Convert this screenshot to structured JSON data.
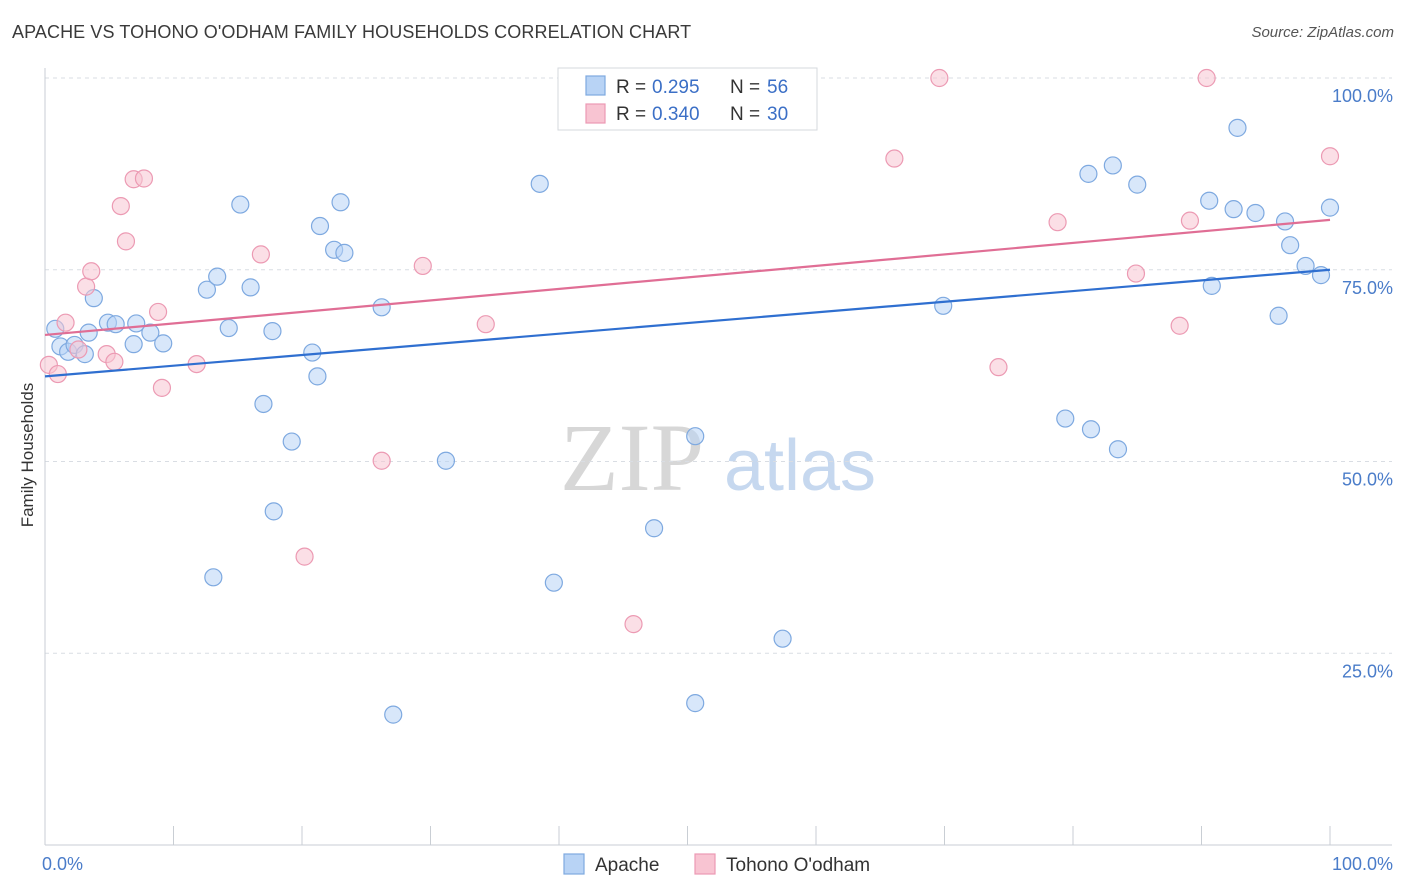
{
  "title": "APACHE VS TOHONO O'ODHAM FAMILY HOUSEHOLDS CORRELATION CHART",
  "source": "Source: ZipAtlas.com",
  "watermark": {
    "zip": "ZIP",
    "atlas": "atlas"
  },
  "colors": {
    "apache_fill": "#b8d3f5",
    "apache_stroke": "#7ea9e0",
    "apache_line": "#2f6fd0",
    "tohono_fill": "#f8c4d2",
    "tohono_stroke": "#ec9ab3",
    "tohono_line": "#e06e95",
    "grid": "#d9dde3",
    "tick": "#4a7cc9"
  },
  "legend": {
    "rows": [
      {
        "series": "apache",
        "r_label": "R = ",
        "r_value": "0.295",
        "n_label": "N = ",
        "n_value": "56"
      },
      {
        "series": "tohono",
        "r_label": "R = ",
        "r_value": "0.340",
        "n_label": "N = ",
        "n_value": "30"
      }
    ]
  },
  "chart_data": {
    "type": "scatter",
    "title": "APACHE VS TOHONO O'ODHAM FAMILY HOUSEHOLDS CORRELATION CHART",
    "xlabel": "",
    "ylabel": "Family Households",
    "xlim": [
      0,
      100
    ],
    "ylim": [
      0,
      104
    ],
    "x_tick_labels": [
      {
        "value": 0,
        "label": "0.0%"
      },
      {
        "value": 100,
        "label": "100.0%"
      }
    ],
    "y_tick_labels": [
      {
        "value": 25,
        "label": "25.0%"
      },
      {
        "value": 50,
        "label": "50.0%"
      },
      {
        "value": 75,
        "label": "75.0%"
      },
      {
        "value": 100,
        "label": "100.0%"
      }
    ],
    "grid": true,
    "legend_position": "bottom-center",
    "series": [
      {
        "name": "Apache",
        "key": "apache",
        "trend": {
          "x": [
            0,
            100
          ],
          "y": [
            61.1,
            75.0
          ]
        },
        "points": [
          {
            "x": 0.8,
            "y": 67.3
          },
          {
            "x": 1.2,
            "y": 65.0
          },
          {
            "x": 1.8,
            "y": 64.3
          },
          {
            "x": 2.3,
            "y": 65.2
          },
          {
            "x": 3.4,
            "y": 66.8
          },
          {
            "x": 3.8,
            "y": 71.3
          },
          {
            "x": 4.9,
            "y": 68.1
          },
          {
            "x": 5.5,
            "y": 67.9
          },
          {
            "x": 7.1,
            "y": 68.0
          },
          {
            "x": 8.2,
            "y": 66.8
          },
          {
            "x": 9.2,
            "y": 65.4
          },
          {
            "x": 12.6,
            "y": 72.4
          },
          {
            "x": 14.3,
            "y": 67.4
          },
          {
            "x": 13.4,
            "y": 74.1
          },
          {
            "x": 16.0,
            "y": 72.7
          },
          {
            "x": 17.7,
            "y": 67.0
          },
          {
            "x": 15.2,
            "y": 83.5
          },
          {
            "x": 21.4,
            "y": 80.7
          },
          {
            "x": 22.5,
            "y": 77.6
          },
          {
            "x": 23.0,
            "y": 83.8
          },
          {
            "x": 23.3,
            "y": 77.2
          },
          {
            "x": 26.2,
            "y": 70.1
          },
          {
            "x": 20.8,
            "y": 64.2
          },
          {
            "x": 21.2,
            "y": 61.1
          },
          {
            "x": 17.0,
            "y": 57.5
          },
          {
            "x": 19.2,
            "y": 52.6
          },
          {
            "x": 13.1,
            "y": 34.9
          },
          {
            "x": 17.8,
            "y": 43.5
          },
          {
            "x": 27.1,
            "y": 17.0
          },
          {
            "x": 31.2,
            "y": 50.1
          },
          {
            "x": 38.5,
            "y": 86.2
          },
          {
            "x": 39.6,
            "y": 34.2
          },
          {
            "x": 47.4,
            "y": 41.3
          },
          {
            "x": 50.6,
            "y": 53.3
          },
          {
            "x": 50.6,
            "y": 18.5
          },
          {
            "x": 57.4,
            "y": 26.9
          },
          {
            "x": 69.9,
            "y": 70.3
          },
          {
            "x": 79.4,
            "y": 55.6
          },
          {
            "x": 81.4,
            "y": 54.2
          },
          {
            "x": 83.5,
            "y": 51.6
          },
          {
            "x": 81.2,
            "y": 87.5
          },
          {
            "x": 83.1,
            "y": 88.6
          },
          {
            "x": 85.0,
            "y": 86.1
          },
          {
            "x": 90.6,
            "y": 84.0
          },
          {
            "x": 92.5,
            "y": 82.9
          },
          {
            "x": 94.2,
            "y": 82.4
          },
          {
            "x": 96.5,
            "y": 81.3
          },
          {
            "x": 96.9,
            "y": 78.2
          },
          {
            "x": 98.1,
            "y": 75.5
          },
          {
            "x": 92.8,
            "y": 93.5
          },
          {
            "x": 90.8,
            "y": 72.9
          },
          {
            "x": 96.0,
            "y": 69.0
          },
          {
            "x": 99.3,
            "y": 74.3
          },
          {
            "x": 100.0,
            "y": 83.1
          },
          {
            "x": 3.1,
            "y": 64.0
          },
          {
            "x": 6.9,
            "y": 65.3
          }
        ]
      },
      {
        "name": "Tohono O'odham",
        "key": "tohono",
        "trend": {
          "x": [
            0,
            100
          ],
          "y": [
            66.5,
            81.5
          ]
        },
        "points": [
          {
            "x": 0.3,
            "y": 62.6
          },
          {
            "x": 1.0,
            "y": 61.4
          },
          {
            "x": 1.6,
            "y": 68.1
          },
          {
            "x": 2.6,
            "y": 64.6
          },
          {
            "x": 3.2,
            "y": 72.8
          },
          {
            "x": 3.6,
            "y": 74.8
          },
          {
            "x": 4.8,
            "y": 64.0
          },
          {
            "x": 5.4,
            "y": 63.0
          },
          {
            "x": 5.9,
            "y": 83.3
          },
          {
            "x": 6.3,
            "y": 78.7
          },
          {
            "x": 6.9,
            "y": 86.8
          },
          {
            "x": 7.7,
            "y": 86.9
          },
          {
            "x": 8.8,
            "y": 69.5
          },
          {
            "x": 9.1,
            "y": 59.6
          },
          {
            "x": 11.8,
            "y": 62.7
          },
          {
            "x": 16.8,
            "y": 77.0
          },
          {
            "x": 20.2,
            "y": 37.6
          },
          {
            "x": 26.2,
            "y": 50.1
          },
          {
            "x": 29.4,
            "y": 75.5
          },
          {
            "x": 34.3,
            "y": 67.9
          },
          {
            "x": 45.8,
            "y": 28.8
          },
          {
            "x": 66.1,
            "y": 89.5
          },
          {
            "x": 69.6,
            "y": 100.0
          },
          {
            "x": 74.2,
            "y": 62.3
          },
          {
            "x": 78.8,
            "y": 81.2
          },
          {
            "x": 84.9,
            "y": 74.5
          },
          {
            "x": 88.3,
            "y": 67.7
          },
          {
            "x": 89.1,
            "y": 81.4
          },
          {
            "x": 90.4,
            "y": 100.0
          },
          {
            "x": 100.0,
            "y": 89.8
          }
        ]
      }
    ]
  }
}
